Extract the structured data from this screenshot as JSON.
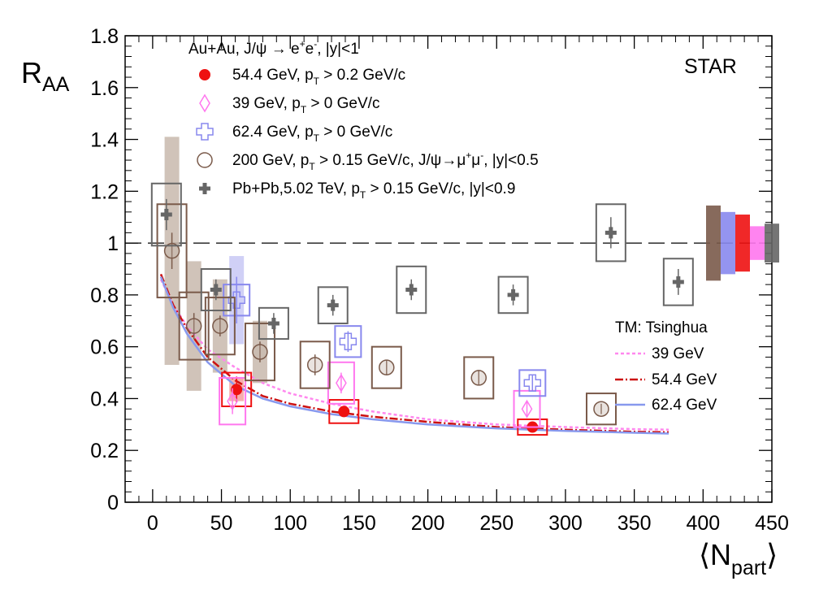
{
  "chart_data": {
    "type": "scatter",
    "ylabel_main": "R",
    "ylabel_sub": "AA",
    "xlabel_main": "⟨N",
    "xlabel_sub": "part",
    "xlabel_end": "⟩",
    "xlim": [
      -20,
      450
    ],
    "ylim": [
      0,
      1.8
    ],
    "x_ticks": [
      0,
      50,
      100,
      150,
      200,
      250,
      300,
      350,
      400,
      450
    ],
    "y_ticks": [
      "0",
      "0.2",
      "0.4",
      "0.6",
      "0.8",
      "1",
      "1.2",
      "1.4",
      "1.6",
      "1.8"
    ],
    "y_tick_values": [
      0,
      0.2,
      0.4,
      0.6,
      0.8,
      1.0,
      1.2,
      1.4,
      1.6,
      1.8
    ],
    "reference_line": 1.0,
    "experiment_label": "STAR",
    "legend_title": {
      "a": "Au+Au, J/ψ → e",
      "a_sup1": "+",
      "a_mid": "e",
      "a_sup2": "-",
      "a_end": ", |y|<1"
    },
    "legend_entries": [
      {
        "pre": "54.4 GeV, p",
        "sub": "T",
        "post": " > 0.2 GeV/c"
      },
      {
        "pre": "39 GeV, p",
        "sub": "T",
        "post": " > 0 GeV/c"
      },
      {
        "pre": "62.4 GeV, p",
        "sub": "T",
        "post": " > 0 GeV/c"
      },
      {
        "pre": "200 GeV, p",
        "sub": "T",
        "post": " > 0.15 GeV/c, J/ψ→μ",
        "sup1": "+",
        "mid": "μ",
        "sup2": "-",
        "end": ", |y|<0.5"
      },
      {
        "pre": "Pb+Pb,5.02 TeV, p",
        "sub": "T",
        "post": " > 0.15 GeV/c, |y|<0.9"
      }
    ],
    "model_title": "TM: Tsinghua",
    "model_entries": [
      "39 GeV",
      "54.4 GeV",
      "62.4 GeV"
    ],
    "colors": {
      "e54": "#ee1111",
      "e39": "#ff77ee",
      "e62": "#8888ee",
      "e200": "#7a5a4a",
      "e200_band": "#c8b8ad",
      "pbpb": "#666666",
      "model39": "#ff88ee",
      "model54": "#cc1111",
      "model62": "#8899ee"
    },
    "series": [
      {
        "key": "e54",
        "marker": "dot",
        "points": [
          {
            "x": 61,
            "y": 0.435,
            "stat": 0.05,
            "sys": 0.065,
            "band": 0.045
          },
          {
            "x": 139,
            "y": 0.35,
            "stat": 0.02,
            "sys": 0.045,
            "band": 0.0
          },
          {
            "x": 276,
            "y": 0.29,
            "stat": 0.01,
            "sys": 0.03,
            "band": 0.0
          }
        ]
      },
      {
        "key": "e39",
        "marker": "diamond",
        "points": [
          {
            "x": 58,
            "y": 0.39,
            "stat": 0.05,
            "sys": 0.09,
            "band": 0.0
          },
          {
            "x": 137,
            "y": 0.46,
            "stat": 0.04,
            "sys": 0.08,
            "band": 0.0
          },
          {
            "x": 272,
            "y": 0.36,
            "stat": 0.03,
            "sys": 0.07,
            "band": 0.0
          }
        ]
      },
      {
        "key": "e62",
        "marker": "cross",
        "points": [
          {
            "x": 61,
            "y": 0.78,
            "stat": 0.09,
            "sys": 0.06,
            "band": 0.17
          },
          {
            "x": 142,
            "y": 0.62,
            "stat": 0.04,
            "sys": 0.06,
            "band": 0.0
          },
          {
            "x": 276,
            "y": 0.46,
            "stat": 0.03,
            "sys": 0.05,
            "band": 0.0
          }
        ]
      },
      {
        "key": "e200",
        "marker": "circle",
        "points": [
          {
            "x": 14,
            "y": 0.97,
            "stat": 0.07,
            "sys": 0.18,
            "band": 0.44
          },
          {
            "x": 30,
            "y": 0.68,
            "stat": 0.05,
            "sys": 0.13,
            "band": 0.25
          },
          {
            "x": 49,
            "y": 0.68,
            "stat": 0.04,
            "sys": 0.11,
            "band": 0.18
          },
          {
            "x": 78,
            "y": 0.58,
            "stat": 0.04,
            "sys": 0.11,
            "band": 0.12
          },
          {
            "x": 118,
            "y": 0.53,
            "stat": 0.04,
            "sys": 0.09,
            "band": 0.0
          },
          {
            "x": 170,
            "y": 0.52,
            "stat": 0.03,
            "sys": 0.08,
            "band": 0.0
          },
          {
            "x": 237,
            "y": 0.48,
            "stat": 0.03,
            "sys": 0.08,
            "band": 0.0
          },
          {
            "x": 326,
            "y": 0.36,
            "stat": 0.02,
            "sys": 0.06,
            "band": 0.0
          }
        ]
      },
      {
        "key": "pbpb",
        "marker": "plus",
        "points": [
          {
            "x": 10,
            "y": 1.11,
            "stat": 0.06,
            "sys": 0.12,
            "band": 0.0
          },
          {
            "x": 46,
            "y": 0.82,
            "stat": 0.04,
            "sys": 0.08,
            "band": 0.0
          },
          {
            "x": 88,
            "y": 0.69,
            "stat": 0.04,
            "sys": 0.06,
            "band": 0.0
          },
          {
            "x": 131,
            "y": 0.76,
            "stat": 0.04,
            "sys": 0.07,
            "band": 0.0
          },
          {
            "x": 188,
            "y": 0.82,
            "stat": 0.04,
            "sys": 0.09,
            "band": 0.0
          },
          {
            "x": 262,
            "y": 0.8,
            "stat": 0.04,
            "sys": 0.07,
            "band": 0.0
          },
          {
            "x": 333,
            "y": 1.04,
            "stat": 0.06,
            "sys": 0.11,
            "band": 0.0
          },
          {
            "x": 382,
            "y": 0.85,
            "stat": 0.05,
            "sys": 0.09,
            "band": 0.0
          }
        ]
      }
    ],
    "models": [
      {
        "key": "model39",
        "dash": "4,3",
        "x": [
          6,
          15,
          25,
          40,
          60,
          80,
          100,
          130,
          160,
          200,
          250,
          300,
          350,
          375
        ],
        "y": [
          0.86,
          0.76,
          0.68,
          0.59,
          0.52,
          0.46,
          0.42,
          0.38,
          0.35,
          0.32,
          0.3,
          0.29,
          0.282,
          0.28
        ]
      },
      {
        "key": "model54",
        "dash": "10,3,2,3",
        "x": [
          6,
          15,
          25,
          40,
          60,
          80,
          100,
          130,
          160,
          200,
          250,
          300,
          350,
          375
        ],
        "y": [
          0.88,
          0.76,
          0.67,
          0.56,
          0.47,
          0.41,
          0.38,
          0.35,
          0.33,
          0.31,
          0.29,
          0.28,
          0.272,
          0.27
        ]
      },
      {
        "key": "model62",
        "dash": "",
        "x": [
          6,
          15,
          25,
          40,
          60,
          80,
          100,
          130,
          160,
          200,
          250,
          300,
          350,
          375
        ],
        "y": [
          0.87,
          0.75,
          0.65,
          0.54,
          0.45,
          0.4,
          0.37,
          0.34,
          0.32,
          0.3,
          0.285,
          0.275,
          0.268,
          0.265
        ]
      }
    ],
    "global_uncertainties": [
      {
        "key": "e200",
        "lo": 0.855,
        "hi": 1.145
      },
      {
        "key": "e62",
        "lo": 0.88,
        "hi": 1.12
      },
      {
        "key": "e54",
        "lo": 0.89,
        "hi": 1.11
      },
      {
        "key": "e39",
        "lo": 0.935,
        "hi": 1.065
      },
      {
        "key": "pbpb",
        "lo": 0.925,
        "hi": 1.075
      }
    ]
  }
}
